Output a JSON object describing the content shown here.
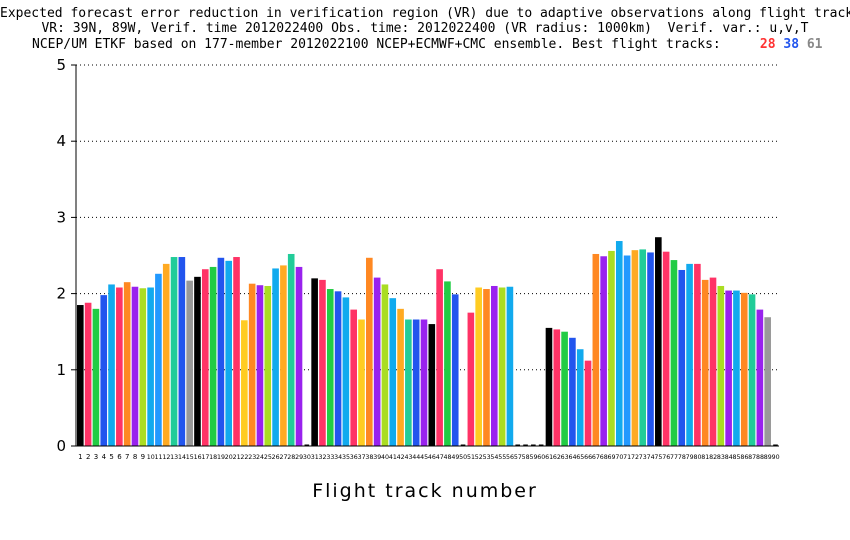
{
  "header": {
    "line1": "Expected forecast error reduction in verification region (VR) due to adaptive observations along flight tracks.",
    "line2": "VR: 39N, 89W, Verif. time 2012022400 Obs. time: 2012022400 (VR radius: 1000km)  Verif. var.: u,v,T",
    "line3": "NCEP/UM ETKF based on 177-member 2012022100 NCEP+ECMWF+CMC ensemble. Best flight tracks:",
    "best_tracks": [
      "28",
      "38",
      "61"
    ],
    "best_colors": [
      "#ff3333",
      "#2255ee",
      "#888888"
    ]
  },
  "chart_data": {
    "type": "bar",
    "xlabel": "Flight track number",
    "ylabel": "",
    "ylim": [
      0,
      5
    ],
    "yticks": [
      0,
      1,
      2,
      3,
      4,
      5
    ],
    "grid": "horizontal dotted",
    "categories": [
      "1",
      "2",
      "3",
      "4",
      "5",
      "6",
      "7",
      "8",
      "9",
      "10",
      "11",
      "12",
      "13",
      "14",
      "15",
      "16",
      "17",
      "18",
      "19",
      "20",
      "21",
      "22",
      "23",
      "24",
      "25",
      "26",
      "27",
      "28",
      "29",
      "30",
      "31",
      "32",
      "33",
      "34",
      "35",
      "36",
      "37",
      "38",
      "39",
      "40",
      "41",
      "42",
      "43",
      "44",
      "45",
      "46",
      "47",
      "48",
      "49",
      "50",
      "51",
      "52",
      "53",
      "54",
      "55",
      "56",
      "57",
      "58",
      "59",
      "60",
      "61",
      "62",
      "63",
      "64",
      "65",
      "66",
      "67",
      "68",
      "69",
      "70",
      "71",
      "72",
      "73",
      "74",
      "75",
      "76",
      "77",
      "78",
      "79",
      "80",
      "81",
      "82",
      "83",
      "84",
      "85",
      "86",
      "87",
      "88",
      "89",
      "90"
    ],
    "values": [
      1.85,
      1.88,
      1.8,
      1.98,
      2.12,
      2.08,
      2.15,
      2.09,
      2.07,
      2.08,
      2.26,
      2.39,
      2.48,
      2.48,
      2.17,
      2.22,
      2.32,
      2.35,
      2.47,
      2.43,
      2.48,
      1.65,
      2.13,
      2.11,
      2.1,
      2.33,
      2.37,
      2.52,
      2.35,
      null,
      2.2,
      2.18,
      2.06,
      2.03,
      1.95,
      1.79,
      1.66,
      2.47,
      2.21,
      2.12,
      1.94,
      1.8,
      1.66,
      1.66,
      1.66,
      1.6,
      2.32,
      2.16,
      1.99,
      null,
      1.75,
      2.08,
      2.06,
      2.1,
      2.08,
      2.09,
      null,
      null,
      null,
      null,
      1.55,
      1.53,
      1.5,
      1.42,
      1.27,
      1.12,
      2.52,
      2.49,
      2.56,
      2.69,
      2.5,
      2.57,
      2.58,
      2.54,
      2.74,
      2.55,
      2.44,
      2.31,
      2.39,
      2.39,
      2.18,
      2.21,
      2.1,
      2.04,
      2.04,
      2.01,
      1.99,
      1.79,
      1.69,
      null
    ],
    "colors": [
      "#000000",
      "#ff3366",
      "#22cc44",
      "#2255ee",
      "#11aaee",
      "#ff3366",
      "#ff8822",
      "#9922ee",
      "#aadd22",
      "#11aaee",
      "#2299ff",
      "#ffaa22",
      "#22cc99",
      "#2255ee",
      "#999999",
      "#000000",
      "#ff3366",
      "#22cc44",
      "#2255ee",
      "#11aaee",
      "#ff3366",
      "#ffcc22",
      "#ff8822",
      "#9922ee",
      "#aadd22",
      "#11aaee",
      "#ffaa22",
      "#22cc99",
      "#9922ee",
      "#999999",
      "#000000",
      "#ff3366",
      "#22cc44",
      "#2255ee",
      "#11aaee",
      "#ff3366",
      "#ffcc22",
      "#ff8822",
      "#9922ee",
      "#aadd22",
      "#11aaee",
      "#ffaa22",
      "#22cc99",
      "#2255ee",
      "#9922ee",
      "#000000",
      "#ff3366",
      "#22cc44",
      "#2255ee",
      "#999999",
      "#ff3366",
      "#ffcc22",
      "#ff8822",
      "#9922ee",
      "#aadd22",
      "#11aaee",
      "#ffaa22",
      "#22cc99",
      "#2255ee",
      "#999999",
      "#000000",
      "#ff3366",
      "#22cc44",
      "#2255ee",
      "#11aaee",
      "#ff3366",
      "#ff8822",
      "#9922ee",
      "#aadd22",
      "#11aaee",
      "#2299ff",
      "#ffaa22",
      "#22cc99",
      "#2255ee",
      "#000000",
      "#ff3366",
      "#22cc44",
      "#2255ee",
      "#11aaee",
      "#ff3366",
      "#ff8822",
      "#ff3366",
      "#aadd22",
      "#9922ee",
      "#11aaee",
      "#ff8822",
      "#22cc99",
      "#9922ee",
      "#999999",
      "#999999"
    ]
  }
}
